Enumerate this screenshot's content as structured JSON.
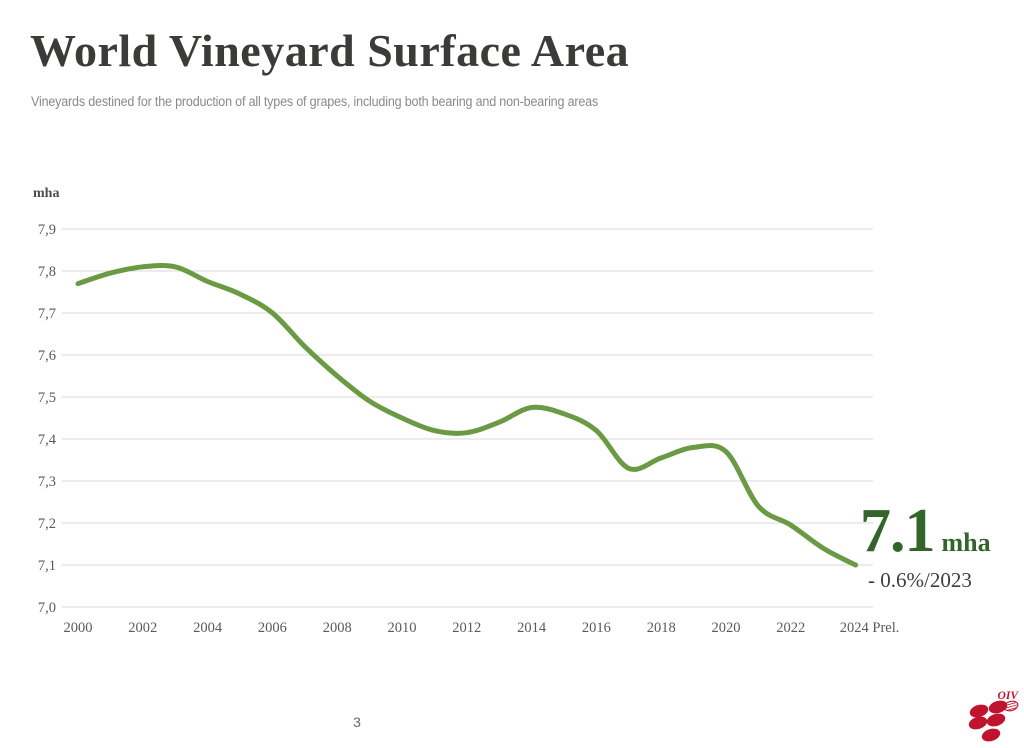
{
  "header": {
    "title": "World Vineyard Surface Area",
    "subtitle": "Vineyards destined for the production of all types of grapes, including both bearing and non-bearing areas"
  },
  "chart_data": {
    "type": "line",
    "title": "World Vineyard Surface Area",
    "xlabel": "",
    "ylabel": "mha",
    "ylim": [
      7.0,
      7.9
    ],
    "grid": true,
    "legend_position": "none",
    "line_color": "#6a9a43",
    "gridline_color": "#d9d9d9",
    "x": [
      2000,
      2001,
      2002,
      2003,
      2004,
      2005,
      2006,
      2007,
      2008,
      2009,
      2010,
      2011,
      2012,
      2013,
      2014,
      2015,
      2016,
      2017,
      2018,
      2019,
      2020,
      2021,
      2022,
      2023,
      2024
    ],
    "values": [
      7.77,
      7.795,
      7.81,
      7.81,
      7.775,
      7.745,
      7.7,
      7.62,
      7.55,
      7.49,
      7.45,
      7.42,
      7.415,
      7.44,
      7.475,
      7.46,
      7.42,
      7.33,
      7.355,
      7.38,
      7.37,
      7.24,
      7.195,
      7.14,
      7.1
    ],
    "y_tick_values": [
      7.9,
      7.8,
      7.7,
      7.6,
      7.5,
      7.4,
      7.3,
      7.2,
      7.1,
      7.0
    ],
    "y_tick_labels": [
      "7,9",
      "7,8",
      "7,7",
      "7,6",
      "7,5",
      "7,4",
      "7,3",
      "7,2",
      "7,1",
      "7,0"
    ],
    "x_tick_values": [
      2000,
      2002,
      2004,
      2006,
      2008,
      2010,
      2012,
      2014,
      2016,
      2018,
      2020,
      2022,
      2024
    ],
    "x_tick_labels": [
      "2000",
      "2002",
      "2004",
      "2006",
      "2008",
      "2010",
      "2012",
      "2014",
      "2016",
      "2018",
      "2020",
      "2022",
      "2024 Prel."
    ]
  },
  "annotation": {
    "value": "7.1",
    "unit": "mha",
    "change": "- 0.6%/2023",
    "color": "#33652b"
  },
  "footer": {
    "page_number": "3"
  },
  "logo": {
    "text": "OIV",
    "color": "#c01330"
  }
}
